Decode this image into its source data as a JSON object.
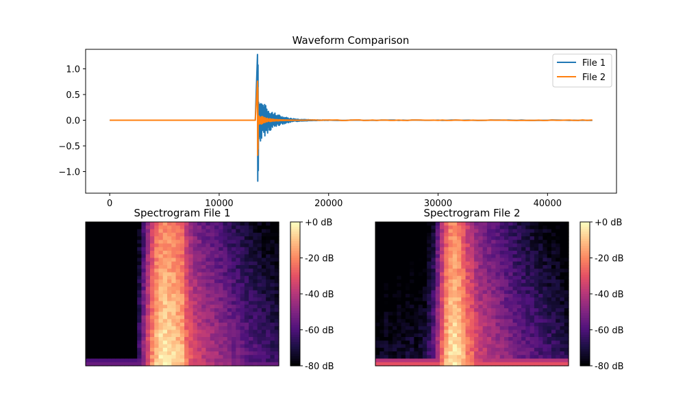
{
  "chart_data": [
    {
      "type": "line",
      "title": "Waveform Comparison",
      "xlabel": "",
      "ylabel": "",
      "xlim": [
        -2200,
        46300
      ],
      "ylim": [
        -1.42,
        1.38
      ],
      "xticks": [
        0,
        10000,
        20000,
        30000,
        40000
      ],
      "xtick_labels": [
        "0",
        "10000",
        "20000",
        "30000",
        "40000"
      ],
      "yticks": [
        -1.0,
        -0.5,
        0.0,
        0.5,
        1.0
      ],
      "ytick_labels": [
        "−1.0",
        "−0.5",
        "0.0",
        "0.5",
        "1.0"
      ],
      "grid": false,
      "legend": "top-right",
      "onset_sample": 13500,
      "series": [
        {
          "name": "File 1",
          "color": "#1f77b4",
          "peak_max": 1.28,
          "peak_min": -1.29,
          "decay_end": 20000
        },
        {
          "name": "File 2",
          "color": "#ff7f0e",
          "peak_max": 0.76,
          "peak_min": -0.74,
          "decay_end": 18000
        }
      ],
      "x_end": 44100
    },
    {
      "type": "heatmap",
      "title": "Spectrogram File 1",
      "colormap": "magma",
      "colorbar_ticks": [
        "+0 dB",
        "-20 dB",
        "-40 dB",
        "-60 dB",
        "-80 dB"
      ],
      "colorbar_range_db": [
        -80,
        0
      ],
      "columns": [
        -80,
        -80,
        -80,
        -80,
        -80,
        -80,
        -80,
        -80,
        -80,
        -80,
        -80,
        -78,
        -60,
        -45,
        -30,
        -18,
        -8,
        -3,
        -2,
        -3,
        -5,
        -8,
        -10,
        -22,
        -28,
        -32,
        -35,
        -37,
        -39,
        -40,
        -42,
        -44,
        -46,
        -48,
        -50,
        -52,
        -53,
        -55,
        -57,
        -58,
        -60,
        -61,
        -62,
        -63,
        -64
      ],
      "noise_floor_db": -68
    },
    {
      "type": "heatmap",
      "title": "Spectrogram File 2",
      "colormap": "magma",
      "colorbar_ticks": [
        "+0 dB",
        "-20 dB",
        "-40 dB",
        "-60 dB",
        "-80 dB"
      ],
      "colorbar_range_db": [
        -80,
        0
      ],
      "columns": [
        -76,
        -74,
        -72,
        -75,
        -73,
        -71,
        -74,
        -72,
        -70,
        -73,
        -71,
        -69,
        -62,
        -55,
        -40,
        -25,
        -12,
        -4,
        -2,
        -6,
        -12,
        -20,
        -24,
        -30,
        -34,
        -36,
        -38,
        -40,
        -42,
        -44,
        -46,
        -48,
        -50,
        -52,
        -54,
        -55,
        -56,
        -58,
        -59,
        -60,
        -62,
        -63,
        -64,
        -66,
        -68
      ],
      "noise_floor_db": -74
    }
  ]
}
